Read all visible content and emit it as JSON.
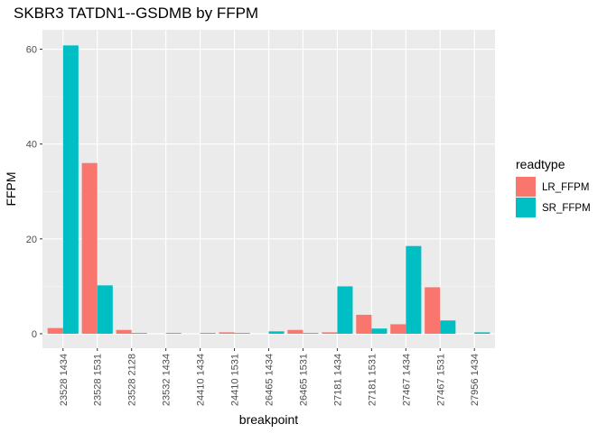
{
  "chart_data": {
    "type": "bar",
    "title": "SKBR3 TATDN1--GSDMB by FFPM",
    "xlabel": "breakpoint",
    "ylabel": "FFPM",
    "ylim": [
      -3.05,
      64.1
    ],
    "yticks": [
      0,
      20,
      40,
      60
    ],
    "categories": [
      "23528 1434",
      "23528 1531",
      "23528 2128",
      "23532 1434",
      "24410 1434",
      "24410 1531",
      "26465 1434",
      "26465 1531",
      "27181 1434",
      "27181 1531",
      "27467 1434",
      "27467 1531",
      "27956 1434"
    ],
    "legend_title": "readtype",
    "legend_position": "right",
    "grid": true,
    "series": [
      {
        "name": "LR_FFPM",
        "color": "#F8766D",
        "values": [
          1.2,
          36.0,
          0.8,
          null,
          null,
          0.3,
          null,
          0.8,
          0.3,
          4.0,
          2.0,
          9.8,
          null
        ]
      },
      {
        "name": "SR_FFPM",
        "color": "#00BFC4",
        "values": [
          60.8,
          10.2,
          0.15,
          0.15,
          0.15,
          0.15,
          0.5,
          0.15,
          10.0,
          1.1,
          18.5,
          2.8,
          0.3
        ]
      }
    ]
  }
}
